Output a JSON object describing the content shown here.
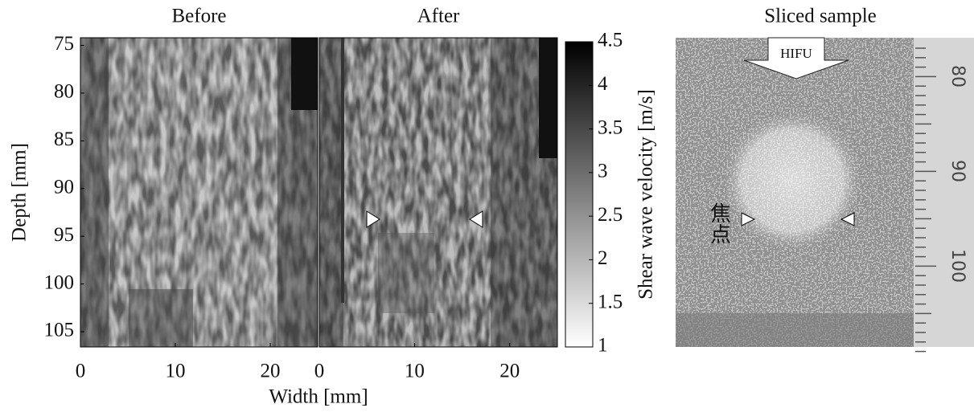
{
  "chart_data": [
    {
      "type": "image",
      "title": "Before",
      "xlabel": "Width [mm]",
      "ylabel": "Depth [mm]",
      "xlim": [
        0,
        25
      ],
      "xticks": [
        0,
        10,
        20
      ],
      "ylim": [
        74.2,
        106.6
      ],
      "yticks": [
        75,
        80,
        85,
        90,
        95,
        100,
        105
      ],
      "yreverse": true
    },
    {
      "type": "image",
      "title": "After",
      "xlim": [
        0,
        25
      ],
      "xticks": [
        0,
        10,
        20
      ],
      "ylim": [
        74.2,
        106.6
      ],
      "yreverse": true
    },
    {
      "type": "colorbar",
      "ylabel": "Shear wave velocity [m/s]",
      "ylim": [
        1,
        4.5
      ],
      "yticks": [
        1,
        1.5,
        2,
        2.5,
        3,
        3.5,
        4,
        4.5
      ],
      "colormap": [
        "#ffffff",
        "#000000"
      ]
    }
  ],
  "photo": {
    "title": "Sliced sample",
    "arrow_label": "HIFU",
    "focus_label": "焦点",
    "ruler_labels": [
      "80",
      "90",
      "100"
    ]
  }
}
